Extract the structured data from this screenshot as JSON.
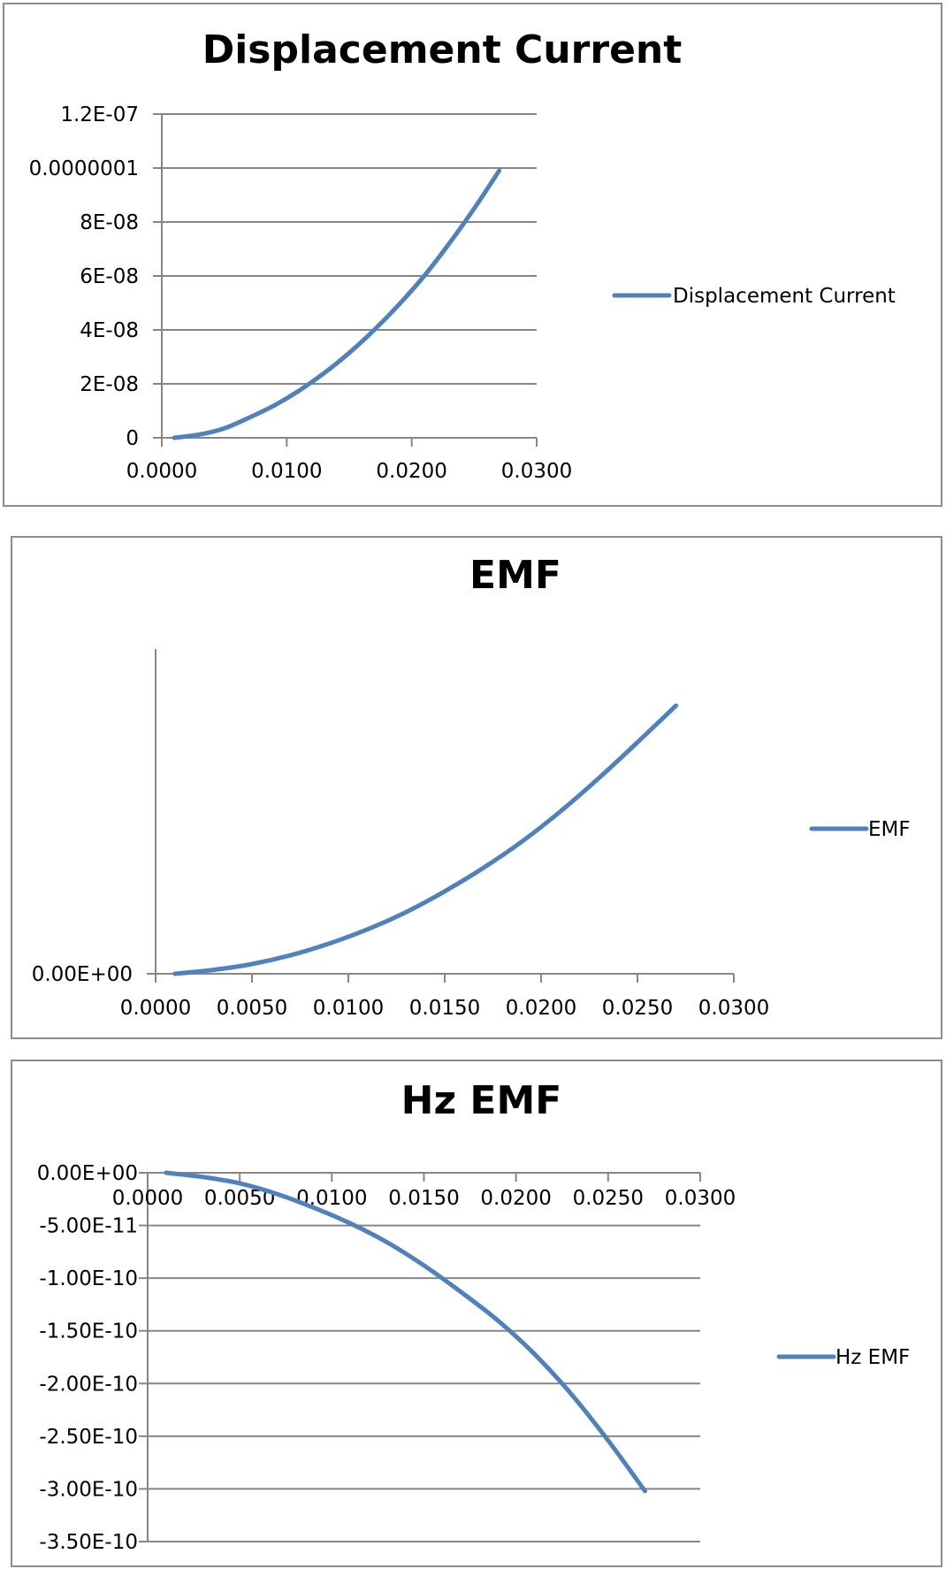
{
  "chart_data": [
    {
      "type": "line",
      "title": "Displacement Current",
      "xlabel": "",
      "ylabel": "",
      "xlim": [
        0,
        0.03
      ],
      "ylim": [
        0,
        1.2e-07
      ],
      "x_ticks": [
        "0.0000",
        "0.0100",
        "0.0200",
        "0.0300"
      ],
      "y_ticks": [
        "0",
        "2E-08",
        "4E-08",
        "6E-08",
        "8E-08",
        "0.0000001",
        "1.2E-07"
      ],
      "grid": true,
      "legend": "right",
      "series": [
        {
          "name": "Displacement Current",
          "color": "#4f81bd",
          "x": [
            0.001,
            0.003,
            0.005,
            0.007,
            0.009,
            0.011,
            0.013,
            0.015,
            0.017,
            0.019,
            0.021,
            0.023,
            0.025,
            0.027
          ],
          "y": [
            0,
            1.2e-09,
            3.5e-09,
            7.5e-09,
            1.2e-08,
            1.75e-08,
            2.4e-08,
            3.15e-08,
            4e-08,
            4.95e-08,
            6e-08,
            7.2e-08,
            8.5e-08,
            9.9e-08
          ]
        }
      ]
    },
    {
      "type": "line",
      "title": "EMF",
      "xlabel": "",
      "ylabel": "",
      "xlim": [
        0,
        0.03
      ],
      "ylim": [
        0,
        1
      ],
      "x_ticks": [
        "0.0000",
        "0.0050",
        "0.0100",
        "0.0150",
        "0.0200",
        "0.0250",
        "0.0300"
      ],
      "y_ticks": [
        "0.00E+00"
      ],
      "grid": false,
      "legend": "right",
      "series": [
        {
          "name": "EMF",
          "color": "#4f81bd",
          "x": [
            0.001,
            0.003,
            0.005,
            0.007,
            0.009,
            0.011,
            0.013,
            0.015,
            0.017,
            0.019,
            0.021,
            0.023,
            0.025,
            0.027
          ],
          "y": [
            0,
            0.012,
            0.03,
            0.057,
            0.093,
            0.137,
            0.19,
            0.254,
            0.326,
            0.407,
            0.5,
            0.603,
            0.713,
            0.826
          ]
        }
      ]
    },
    {
      "type": "line",
      "title": "Hz EMF",
      "xlabel": "",
      "ylabel": "",
      "xlim": [
        0,
        0.03
      ],
      "ylim": [
        -3.5e-10,
        0
      ],
      "x_ticks": [
        "0.0000",
        "0.0050",
        "0.0100",
        "0.0150",
        "0.0200",
        "0.0250",
        "0.0300"
      ],
      "y_ticks": [
        "0.00E+00",
        "-5.00E-11",
        "-1.00E-10",
        "-1.50E-10",
        "-2.00E-10",
        "-2.50E-10",
        "-3.00E-10",
        "-3.50E-10"
      ],
      "grid": true,
      "legend": "right",
      "series": [
        {
          "name": "Hz EMF",
          "color": "#4f81bd",
          "x": [
            0.001,
            0.003,
            0.005,
            0.007,
            0.009,
            0.011,
            0.013,
            0.015,
            0.017,
            0.019,
            0.021,
            0.023,
            0.025,
            0.027
          ],
          "y": [
            0,
            -4e-12,
            -1e-11,
            -2e-11,
            -3.3e-11,
            -4.8e-11,
            -6.6e-11,
            -8.8e-11,
            -1.13e-10,
            -1.4e-10,
            -1.72e-10,
            -2.1e-10,
            -2.54e-10,
            -3.02e-10
          ]
        }
      ]
    }
  ]
}
